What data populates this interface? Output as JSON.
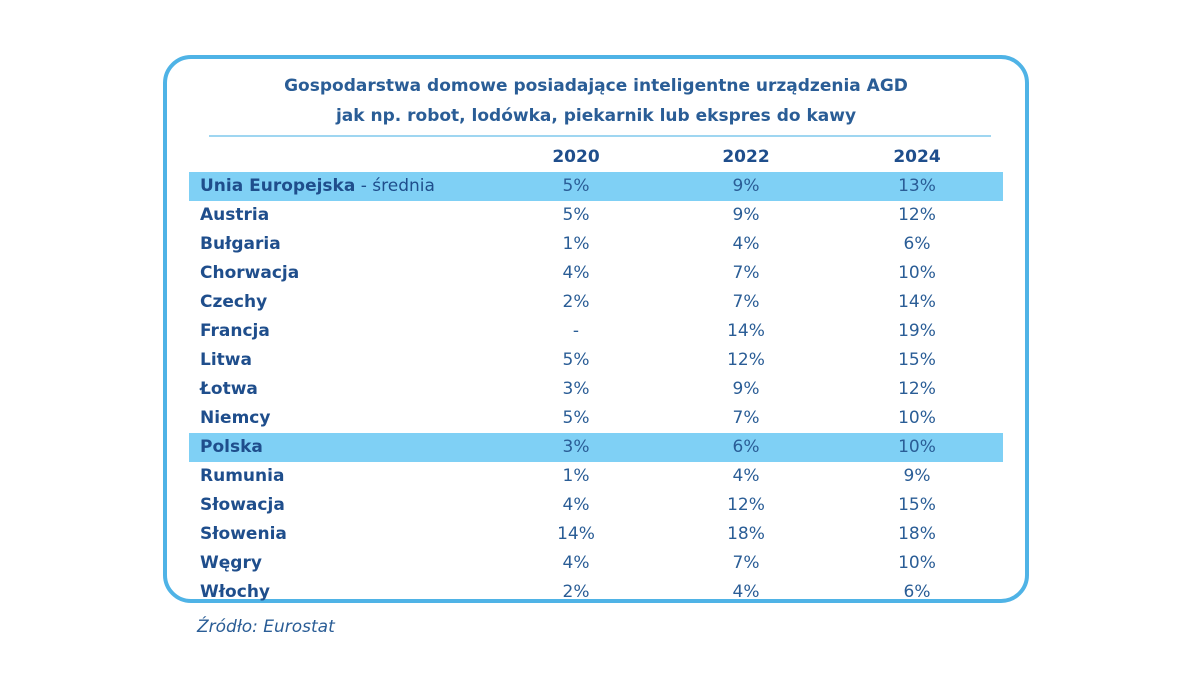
{
  "chart_data": {
    "type": "table",
    "title": "Gospodarstwa domowe posiadające inteligentne urządzenia AGD",
    "subtitle": "jak np. robot, lodówka, piekarnik lub ekspres do kawy",
    "columns": [
      "2020",
      "2022",
      "2024"
    ],
    "rows": [
      {
        "name": "Unia Europejska",
        "suffix": " - średnia",
        "values": [
          "5%",
          "9%",
          "13%"
        ],
        "highlight": true
      },
      {
        "name": "Austria",
        "suffix": "",
        "values": [
          "5%",
          "9%",
          "12%"
        ],
        "highlight": false
      },
      {
        "name": "Bułgaria",
        "suffix": "",
        "values": [
          "1%",
          "4%",
          "6%"
        ],
        "highlight": false
      },
      {
        "name": "Chorwacja",
        "suffix": "",
        "values": [
          "4%",
          "7%",
          "10%"
        ],
        "highlight": false
      },
      {
        "name": "Czechy",
        "suffix": "",
        "values": [
          "2%",
          "7%",
          "14%"
        ],
        "highlight": false
      },
      {
        "name": "Francja",
        "suffix": "",
        "values": [
          "-",
          "14%",
          "19%"
        ],
        "highlight": false
      },
      {
        "name": "Litwa",
        "suffix": "",
        "values": [
          "5%",
          "12%",
          "15%"
        ],
        "highlight": false
      },
      {
        "name": "Łotwa",
        "suffix": "",
        "values": [
          "3%",
          "9%",
          "12%"
        ],
        "highlight": false
      },
      {
        "name": "Niemcy",
        "suffix": "",
        "values": [
          "5%",
          "7%",
          "10%"
        ],
        "highlight": false
      },
      {
        "name": "Polska",
        "suffix": "",
        "values": [
          "3%",
          "6%",
          "10%"
        ],
        "highlight": true
      },
      {
        "name": "Rumunia",
        "suffix": "",
        "values": [
          "1%",
          "4%",
          "9%"
        ],
        "highlight": false
      },
      {
        "name": "Słowacja",
        "suffix": "",
        "values": [
          "4%",
          "12%",
          "15%"
        ],
        "highlight": false
      },
      {
        "name": "Słowenia",
        "suffix": "",
        "values": [
          "14%",
          "18%",
          "18%"
        ],
        "highlight": false
      },
      {
        "name": "Węgry",
        "suffix": "",
        "values": [
          "4%",
          "7%",
          "10%"
        ],
        "highlight": false
      },
      {
        "name": "Włochy",
        "suffix": "",
        "values": [
          "2%",
          "4%",
          "6%"
        ],
        "highlight": false
      }
    ],
    "source": "Źródło: Eurostat"
  }
}
